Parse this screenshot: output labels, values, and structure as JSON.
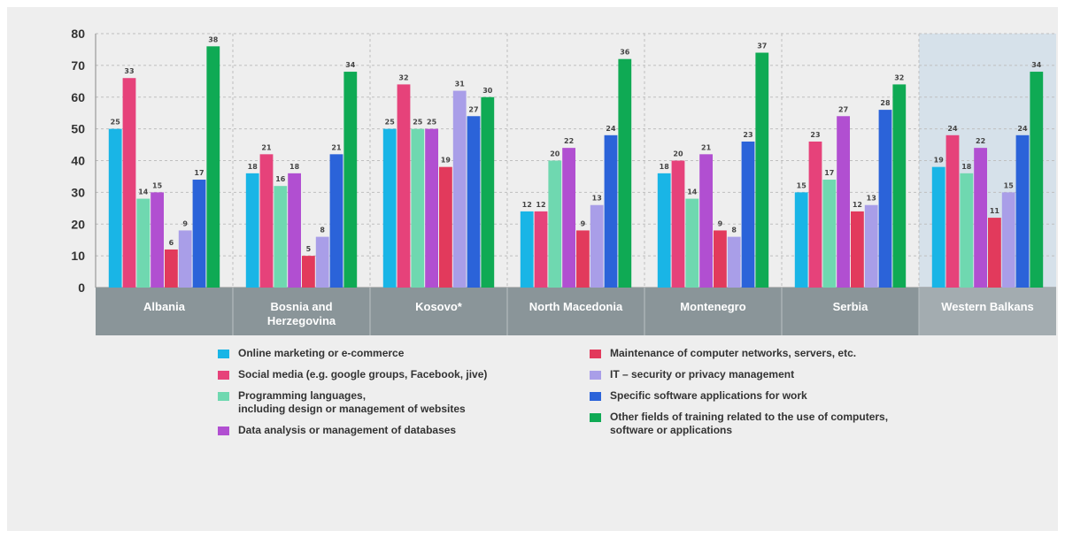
{
  "chart_data": {
    "type": "bar",
    "title": "",
    "xlabel": "",
    "ylabel": "",
    "ylim": [
      0,
      80
    ],
    "yticks": [
      0,
      10,
      20,
      30,
      40,
      50,
      60,
      70,
      80
    ],
    "grid": true,
    "legend_position": "bottom",
    "categories": [
      "Albania",
      "Bosnia and\nHerzegovina",
      "Kosovo*",
      "North Macedonia",
      "Montenegro",
      "Serbia",
      "Western Balkans"
    ],
    "highlighted_category": "Western Balkans",
    "series": [
      {
        "name": "Online marketing or e-commerce",
        "color": "#19b5e6",
        "values": [
          50,
          36,
          50,
          24,
          36,
          30,
          38
        ],
        "labels": [
          "25",
          "18",
          "25",
          "12",
          "18",
          "15",
          "19"
        ]
      },
      {
        "name": "Social media (e.g. google groups, Facebook, jive)",
        "color": "#e6427a",
        "values": [
          66,
          42,
          64,
          24,
          40,
          46,
          48
        ],
        "labels": [
          "33",
          "21",
          "32",
          "12",
          "20",
          "23",
          "24"
        ]
      },
      {
        "name": "Programming languages,\nincluding design or management of websites",
        "color": "#6fd8b0",
        "values": [
          28,
          32,
          50,
          40,
          28,
          34,
          36
        ],
        "labels": [
          "14",
          "16",
          "25",
          "20",
          "14",
          "17",
          "18"
        ]
      },
      {
        "name": "Data analysis or management of databases",
        "color": "#b14fd1",
        "values": [
          30,
          36,
          50,
          44,
          42,
          54,
          44
        ],
        "labels": [
          "15",
          "18",
          "25",
          "22",
          "21",
          "27",
          "22"
        ]
      },
      {
        "name": "Maintenance of computer networks, servers, etc.",
        "color": "#e23a5c",
        "values": [
          12,
          10,
          38,
          18,
          18,
          24,
          22
        ],
        "labels": [
          "6",
          "5",
          "19",
          "9",
          "9",
          "12",
          "11"
        ]
      },
      {
        "name": "IT – security or privacy management",
        "color": "#a99ee8",
        "values": [
          18,
          16,
          62,
          26,
          16,
          26,
          30
        ],
        "labels": [
          "9",
          "8",
          "31",
          "13",
          "8",
          "13",
          "15"
        ]
      },
      {
        "name": "Specific software applications for work",
        "color": "#2b63d9",
        "values": [
          34,
          42,
          54,
          48,
          46,
          56,
          48
        ],
        "labels": [
          "17",
          "21",
          "27",
          "24",
          "23",
          "28",
          "24"
        ]
      },
      {
        "name": "Other fields of training related to the use of computers,\nsoftware or applications",
        "color": "#0faa54",
        "values": [
          76,
          68,
          60,
          72,
          74,
          64,
          68
        ],
        "labels": [
          "38",
          "34",
          "30",
          "36",
          "37",
          "32",
          "34"
        ]
      }
    ],
    "legend_order": [
      0,
      4,
      1,
      5,
      2,
      6,
      3,
      7
    ]
  },
  "colors": {
    "category_band": "#8a9599",
    "highlight_band": "#d6e1ea",
    "grid": "#bfbfbf",
    "axis": "#888888"
  }
}
